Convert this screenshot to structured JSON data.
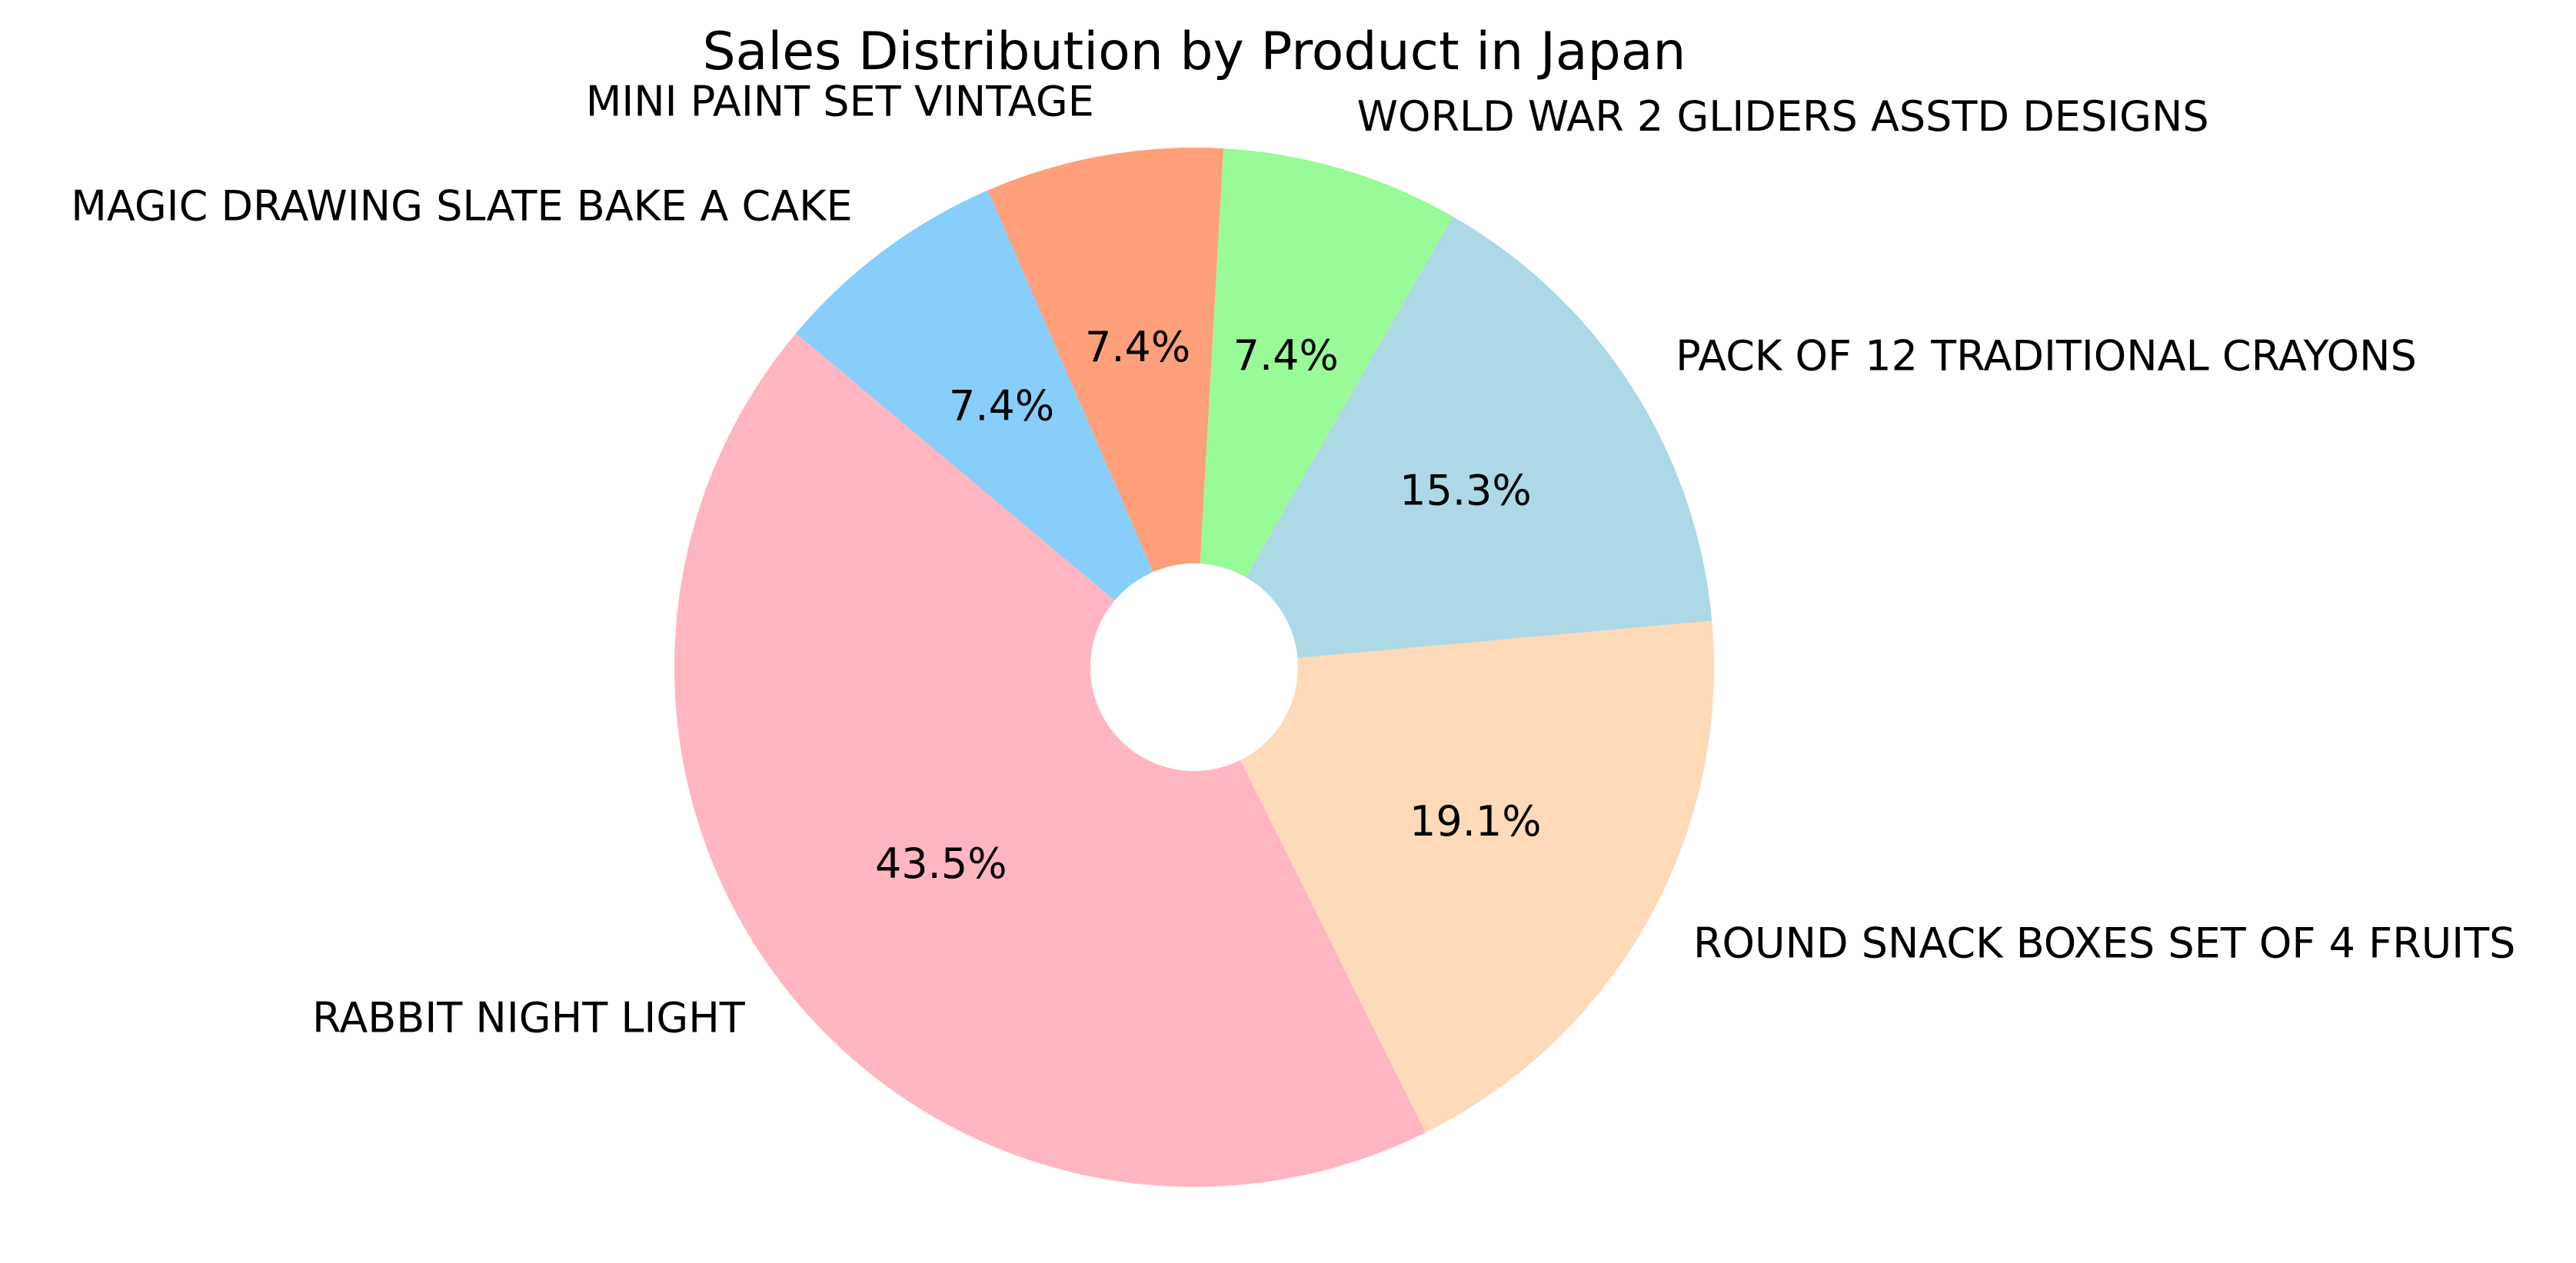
{
  "chart_data": {
    "type": "pie",
    "title": "Sales Distribution by Product in Japan",
    "donut_hole": true,
    "start_angle_deg": 140,
    "direction": "counterclockwise",
    "slices": [
      {
        "label": "RABBIT NIGHT LIGHT",
        "value": 43.5,
        "pct_label": "43.5%",
        "color": "#FFB6C1"
      },
      {
        "label": "ROUND SNACK BOXES SET OF 4 FRUITS",
        "value": 19.1,
        "pct_label": "19.1%",
        "color": "#FFDAB9"
      },
      {
        "label": "PACK OF 12 TRADITIONAL CRAYONS",
        "value": 15.3,
        "pct_label": "15.3%",
        "color": "#ADD8E6"
      },
      {
        "label": "WORLD WAR 2 GLIDERS ASSTD DESIGNS",
        "value": 7.4,
        "pct_label": "7.4%",
        "color": "#98FB98"
      },
      {
        "label": "MINI PAINT SET VINTAGE",
        "value": 7.4,
        "pct_label": "7.4%",
        "color": "#FFA07A"
      },
      {
        "label": "MAGIC DRAWING SLATE BAKE A CAKE",
        "value": 7.4,
        "pct_label": "7.4%",
        "color": "#87CEFA"
      }
    ]
  }
}
